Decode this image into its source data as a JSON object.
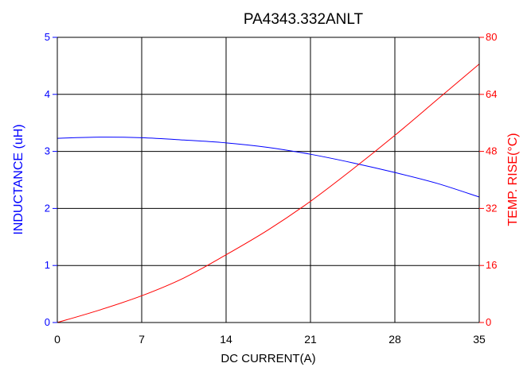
{
  "chart_data": {
    "type": "line",
    "title": "PA4343.332ANLT",
    "xlabel": "DC CURRENT(A)",
    "ylabel_left": "INDUCTANCE (uH)",
    "ylabel_right": "TEMP. RISE(°C)",
    "xlim": [
      0,
      35
    ],
    "ylim_left": [
      0,
      5
    ],
    "ylim_right": [
      0,
      80
    ],
    "x_ticks": [
      "0",
      "7",
      "14",
      "21",
      "28",
      "35"
    ],
    "y_left_ticks": [
      "0",
      "1",
      "2",
      "3",
      "4",
      "5"
    ],
    "y_right_ticks": [
      "0",
      "16",
      "32",
      "48",
      "64",
      "80"
    ],
    "grid": true,
    "legend": "none",
    "series": [
      {
        "axis": "left",
        "color": "#0000ff",
        "x": [
          0,
          3.5,
          7,
          10.5,
          14,
          17.5,
          21,
          24.5,
          28,
          31.5,
          35
        ],
        "y": [
          3.23,
          3.25,
          3.24,
          3.2,
          3.15,
          3.07,
          2.95,
          2.8,
          2.63,
          2.44,
          2.2
        ]
      },
      {
        "axis": "right",
        "color": "#ff0000",
        "x": [
          0,
          3.5,
          7,
          10.5,
          14,
          17.5,
          21,
          24.5,
          28,
          31.5,
          35
        ],
        "y": [
          0,
          3.5,
          7.5,
          12.5,
          19,
          26,
          34,
          43,
          52.5,
          62.5,
          72.5
        ]
      }
    ]
  }
}
